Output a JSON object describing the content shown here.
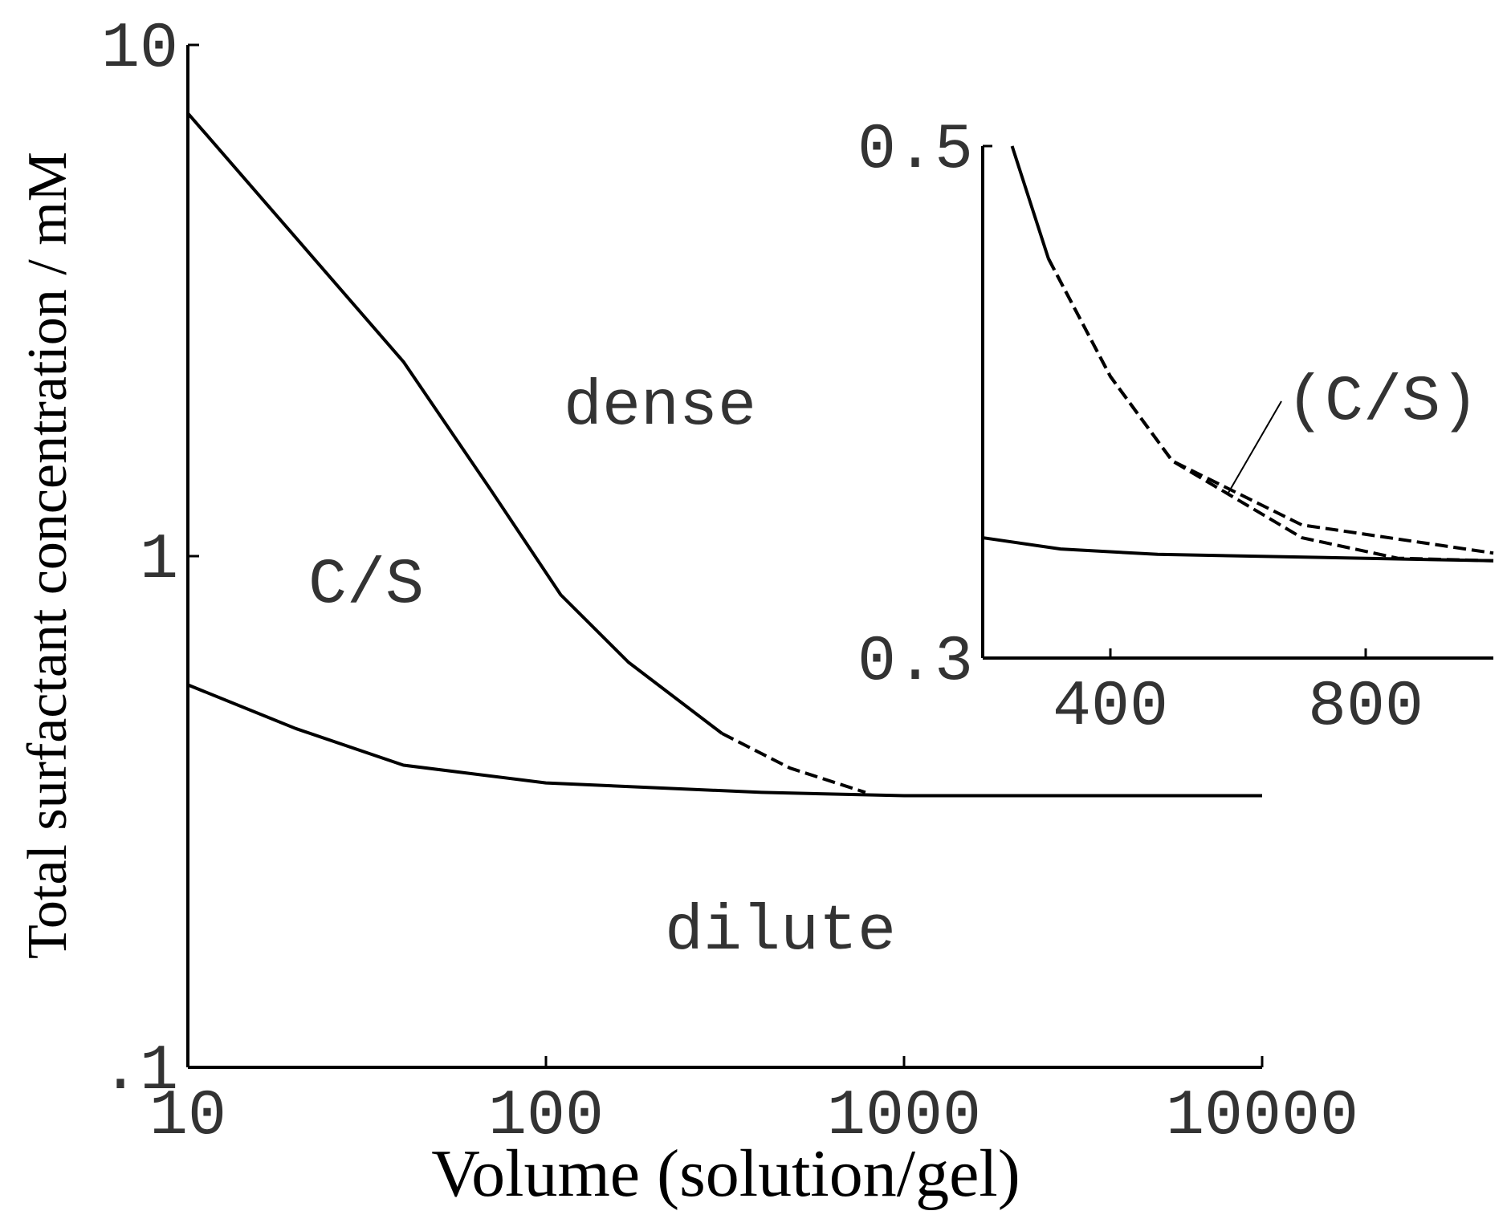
{
  "chart_data": [
    {
      "type": "line",
      "xlabel": "Volume (solution/gel)",
      "ylabel": "Total surfactant concentration / mM",
      "xscale": "log",
      "yscale": "log",
      "xlim": [
        10,
        10000
      ],
      "ylim": [
        0.1,
        10
      ],
      "xticks": [
        10,
        100,
        1000,
        10000
      ],
      "yticks": [
        {
          "value": 0.1,
          "label": ".1"
        },
        1,
        10
      ],
      "annotations": [
        "dense",
        "C/S",
        "dilute"
      ],
      "series": [
        {
          "color": "#000000",
          "line_style": "solid",
          "x": [
            10,
            20,
            40,
            70,
            110,
            170,
            310
          ],
          "values": [
            7.35,
            4.2,
            2.4,
            1.35,
            0.84,
            0.62,
            0.45
          ]
        },
        {
          "color": "#000000",
          "line_style": "dashed",
          "x": [
            310,
            480,
            780
          ],
          "values": [
            0.45,
            0.385,
            0.345
          ]
        },
        {
          "color": "#000000",
          "line_style": "solid",
          "x": [
            10,
            20,
            40,
            100,
            400,
            1000,
            10000
          ],
          "values": [
            0.56,
            0.46,
            0.39,
            0.36,
            0.345,
            0.34,
            0.34
          ]
        }
      ]
    },
    {
      "type": "line",
      "xscale": "linear",
      "yscale": "linear",
      "xlim": [
        200,
        1000
      ],
      "ylim": [
        0.3,
        0.5
      ],
      "xticks": [
        400,
        800
      ],
      "yticks": [
        0.3,
        0.5
      ],
      "annotations": [
        "(C/S)"
      ],
      "series": [
        {
          "color": "#000000",
          "line_style": "solid",
          "x": [
            246,
            303
          ],
          "values": [
            0.5,
            0.456
          ]
        },
        {
          "color": "#000000",
          "line_style": "dashed",
          "x": [
            303,
            400,
            497,
            700,
            1000
          ],
          "values": [
            0.456,
            0.41,
            0.377,
            0.352,
            0.341
          ]
        },
        {
          "color": "#000000",
          "line_style": "dashed",
          "x": [
            303,
            400,
            497,
            700,
            850,
            1000
          ],
          "values": [
            0.456,
            0.41,
            0.377,
            0.347,
            0.339,
            0.338
          ]
        },
        {
          "color": "#000000",
          "line_style": "solid",
          "x": [
            200,
            322,
            474,
            1000
          ],
          "values": [
            0.347,
            0.3426,
            0.3405,
            0.338
          ]
        }
      ]
    }
  ]
}
